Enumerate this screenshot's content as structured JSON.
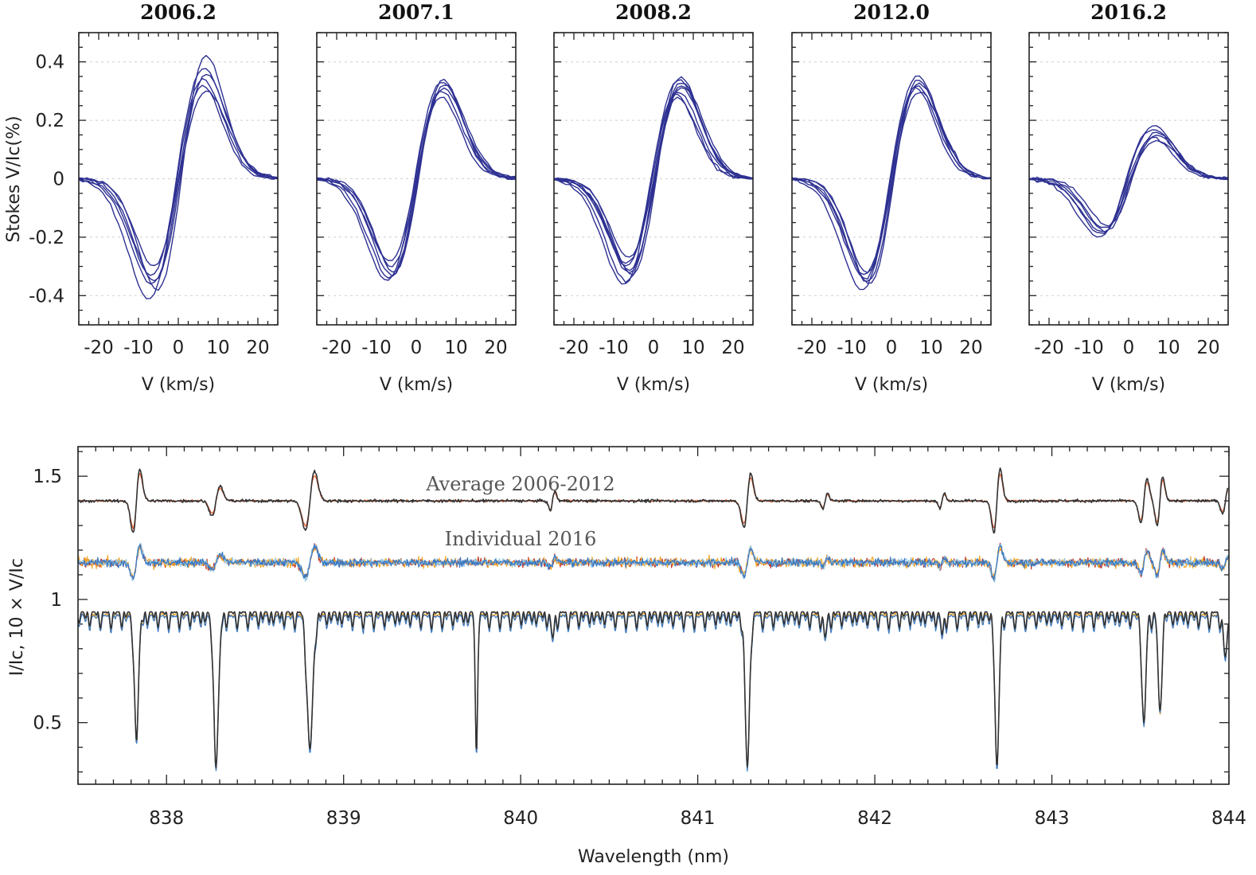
{
  "chart_data": [
    {
      "type": "line",
      "title": "2006.2",
      "xlabel": "V (km/s)",
      "ylabel": "Stokes V/Ic(%)",
      "xlim": [
        -25,
        25
      ],
      "ylim": [
        -0.5,
        0.5
      ],
      "xticks": [
        "-20",
        "-10",
        "0",
        "10",
        "20"
      ],
      "yticks": [
        "-0.4",
        "-0.2",
        "0",
        "0.2",
        "0.4"
      ],
      "color": "#2e3192",
      "grid": true,
      "profile": {
        "amplitude_pos": [
          0.32,
          0.36,
          0.38,
          0.42,
          0.34,
          0.3
        ],
        "amplitude_neg": [
          -0.3,
          -0.35,
          -0.41,
          -0.38,
          -0.33,
          -0.36
        ],
        "center_shift": [
          0,
          0.5,
          -0.5,
          0.8,
          -0.3,
          0.2
        ]
      }
    },
    {
      "type": "line",
      "title": "2007.1",
      "xlabel": "V (km/s)",
      "ylabel": "",
      "xlim": [
        -25,
        25
      ],
      "ylim": [
        -0.5,
        0.5
      ],
      "xticks": [
        "-20",
        "-10",
        "0",
        "10",
        "20"
      ],
      "yticks": [],
      "color": "#2e3192",
      "grid": true,
      "profile": {
        "amplitude_pos": [
          0.28,
          0.31,
          0.33,
          0.34,
          0.3,
          0.32
        ],
        "amplitude_neg": [
          -0.3,
          -0.33,
          -0.35,
          -0.32,
          -0.28,
          -0.34
        ],
        "center_shift": [
          0,
          0.4,
          -0.4,
          0.6,
          -0.2,
          0.2
        ]
      }
    },
    {
      "type": "line",
      "title": "2008.2",
      "xlabel": "V (km/s)",
      "ylabel": "",
      "xlim": [
        -25,
        25
      ],
      "ylim": [
        -0.5,
        0.5
      ],
      "xticks": [
        "-20",
        "-10",
        "0",
        "10",
        "20"
      ],
      "yticks": [],
      "color": "#2e3192",
      "grid": true,
      "profile": {
        "amplitude_pos": [
          0.28,
          0.31,
          0.34,
          0.35,
          0.3,
          0.33,
          0.29,
          0.32
        ],
        "amplitude_neg": [
          -0.27,
          -0.31,
          -0.36,
          -0.33,
          -0.29,
          -0.35,
          -0.3,
          -0.32
        ],
        "center_shift": [
          0,
          0.5,
          -0.5,
          0.7,
          -0.3,
          0.2,
          -0.6,
          0.4
        ]
      }
    },
    {
      "type": "line",
      "title": "2012.0",
      "xlabel": "V (km/s)",
      "ylabel": "",
      "xlim": [
        -25,
        25
      ],
      "ylim": [
        -0.5,
        0.5
      ],
      "xticks": [
        "-20",
        "-10",
        "0",
        "10",
        "20"
      ],
      "yticks": [],
      "color": "#2e3192",
      "grid": true,
      "profile": {
        "amplitude_pos": [
          0.31,
          0.33,
          0.35,
          0.34,
          0.32,
          0.3
        ],
        "amplitude_neg": [
          -0.32,
          -0.35,
          -0.38,
          -0.36,
          -0.33,
          -0.34
        ],
        "center_shift": [
          0,
          0.4,
          -0.4,
          0.6,
          -0.2,
          0.2
        ]
      }
    },
    {
      "type": "line",
      "title": "2016.2",
      "xlabel": "V (km/s)",
      "ylabel": "",
      "xlim": [
        -25,
        25
      ],
      "ylim": [
        -0.5,
        0.5
      ],
      "xticks": [
        "-20",
        "-10",
        "0",
        "10",
        "20"
      ],
      "yticks": [],
      "color": "#2e3192",
      "grid": true,
      "profile": {
        "amplitude_pos": [
          0.14,
          0.16,
          0.18,
          0.15,
          0.17,
          0.13
        ],
        "amplitude_neg": [
          -0.17,
          -0.18,
          -0.2,
          -0.16,
          -0.19,
          -0.18
        ],
        "center_shift": [
          0,
          0.6,
          -0.6,
          0.9,
          -0.4,
          0.3
        ]
      }
    },
    {
      "type": "line",
      "title": "",
      "xlabel": "Wavelength (nm)",
      "ylabel": "I/Ic, 10 × V/Ic",
      "xlim": [
        837.5,
        844
      ],
      "ylim": [
        0.25,
        1.62
      ],
      "xticks": [
        "838",
        "839",
        "840",
        "841",
        "842",
        "843",
        "844"
      ],
      "yticks": [
        "0.5",
        "1",
        "1.5"
      ],
      "annotations": [
        "Average 2006-2012",
        "Individual 2016"
      ],
      "series": [
        {
          "values": [],
          "color": "#e8592a",
          "offset": 1.4
        },
        {
          "values": [],
          "color": "#333333",
          "offset": 1.4
        },
        {
          "values": [],
          "color": "#c0392b",
          "offset": 1.15
        },
        {
          "values": [],
          "color": "#f5a623",
          "offset": 1.15
        },
        {
          "values": [],
          "color": "#8fc7e8",
          "offset": 1.15
        },
        {
          "values": [],
          "color": "#3a78c2",
          "offset": 1.15
        },
        {
          "values": [],
          "color": "#f5a623",
          "offset": 0
        },
        {
          "values": [],
          "color": "#3a78c2",
          "offset": 0
        },
        {
          "values": [],
          "color": "#333333",
          "offset": 0
        }
      ],
      "lines": [
        {
          "wavelength": 837.83,
          "depth": 0.49,
          "width": 0.012,
          "zeeman": 0.13
        },
        {
          "wavelength": 838.28,
          "depth": 0.58,
          "width": 0.014,
          "zeeman": 0.06
        },
        {
          "wavelength": 838.81,
          "depth": 0.55,
          "width": 0.016,
          "zeeman": 0.12
        },
        {
          "wavelength": 839.75,
          "depth": 0.58,
          "width": 0.006,
          "zeeman": 0.0
        },
        {
          "wavelength": 840.18,
          "depth": 0.1,
          "width": 0.008,
          "zeeman": 0.04
        },
        {
          "wavelength": 841.28,
          "depth": 0.62,
          "width": 0.012,
          "zeeman": 0.11
        },
        {
          "wavelength": 841.72,
          "depth": 0.1,
          "width": 0.008,
          "zeeman": 0.03
        },
        {
          "wavelength": 842.38,
          "depth": 0.08,
          "width": 0.008,
          "zeeman": 0.03
        },
        {
          "wavelength": 842.69,
          "depth": 0.63,
          "width": 0.011,
          "zeeman": 0.13
        },
        {
          "wavelength": 843.52,
          "depth": 0.45,
          "width": 0.011,
          "zeeman": 0.09
        },
        {
          "wavelength": 843.61,
          "depth": 0.4,
          "width": 0.01,
          "zeeman": 0.1
        },
        {
          "wavelength": 843.98,
          "depth": 0.18,
          "width": 0.01,
          "zeeman": 0.05
        }
      ]
    }
  ]
}
